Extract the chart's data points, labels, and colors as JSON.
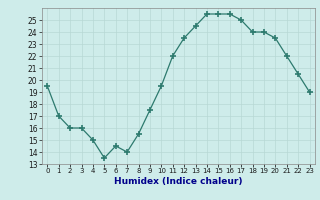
{
  "x": [
    0,
    1,
    2,
    3,
    4,
    5,
    6,
    7,
    8,
    9,
    10,
    11,
    12,
    13,
    14,
    15,
    16,
    17,
    18,
    19,
    20,
    21,
    22,
    23
  ],
  "y": [
    19.5,
    17.0,
    16.0,
    16.0,
    15.0,
    13.5,
    14.5,
    14.0,
    15.5,
    17.5,
    19.5,
    22.0,
    23.5,
    24.5,
    25.5,
    25.5,
    25.5,
    25.0,
    24.0,
    24.0,
    23.5,
    22.0,
    20.5,
    19.0
  ],
  "xlabel": "Humidex (Indice chaleur)",
  "ylim": [
    13,
    26
  ],
  "xlim": [
    -0.5,
    23.5
  ],
  "yticks": [
    13,
    14,
    15,
    16,
    17,
    18,
    19,
    20,
    21,
    22,
    23,
    24,
    25
  ],
  "xtick_labels": [
    "0",
    "1",
    "2",
    "3",
    "4",
    "5",
    "6",
    "7",
    "8",
    "9",
    "10",
    "11",
    "12",
    "13",
    "14",
    "15",
    "16",
    "17",
    "18",
    "19",
    "20",
    "21",
    "22",
    "23"
  ],
  "line_color": "#2d7a6e",
  "marker": "+",
  "bg_color": "#ceecea",
  "grid_color": "#b8d8d5",
  "xlabel_color": "#00008b"
}
